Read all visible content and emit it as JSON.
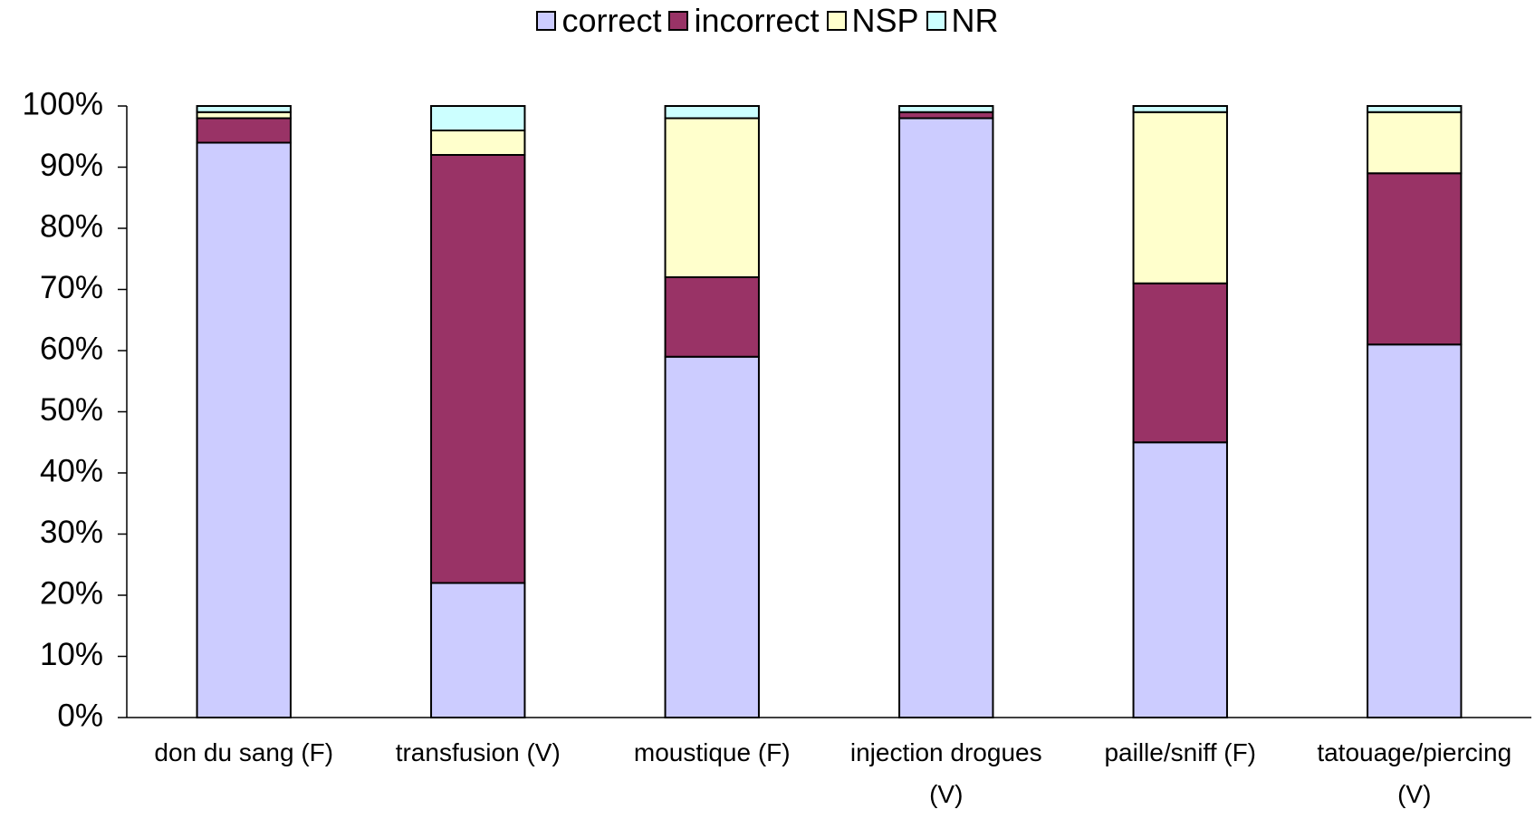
{
  "chart_data": {
    "type": "stacked_bar",
    "categories": [
      "don du sang (F)",
      "transfusion (V)",
      "moustique (F)",
      "injection drogues (V)",
      "paille/sniff (F)",
      "tatouage/piercing (V)"
    ],
    "series": [
      {
        "name": "correct",
        "color": "#ccccff",
        "values": [
          94,
          22,
          59,
          98,
          45,
          61
        ]
      },
      {
        "name": "incorrect",
        "color": "#993366",
        "values": [
          4,
          70,
          13,
          1,
          26,
          28
        ]
      },
      {
        "name": "NSP",
        "color": "#ffffcc",
        "values": [
          1,
          4,
          26,
          0,
          28,
          10
        ]
      },
      {
        "name": "NR",
        "color": "#ccffff",
        "values": [
          1,
          4,
          2,
          1,
          1,
          1
        ]
      }
    ],
    "ylim": [
      0,
      100
    ],
    "yticks": [
      {
        "value": 0,
        "label": "0%"
      },
      {
        "value": 10,
        "label": "10%"
      },
      {
        "value": 20,
        "label": "20%"
      },
      {
        "value": 30,
        "label": "30%"
      },
      {
        "value": 40,
        "label": "40%"
      },
      {
        "value": 50,
        "label": "50%"
      },
      {
        "value": 60,
        "label": "60%"
      },
      {
        "value": 70,
        "label": "70%"
      },
      {
        "value": 80,
        "label": "80%"
      },
      {
        "value": 90,
        "label": "90%"
      },
      {
        "value": 100,
        "label": "100%"
      }
    ],
    "grid": false,
    "legend": "top"
  }
}
